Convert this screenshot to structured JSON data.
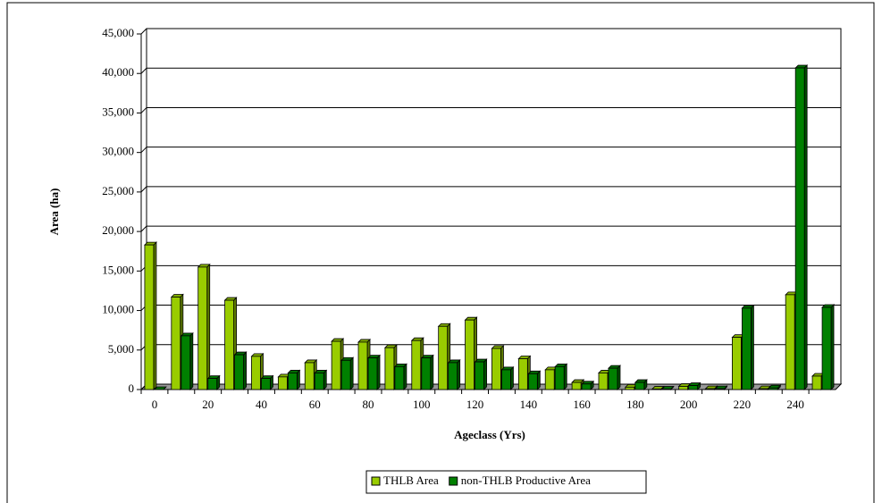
{
  "chart_data": {
    "type": "bar",
    "x_label": "Ageclass (Yrs)",
    "y_label": "Area (ha)",
    "categories": [
      "0",
      null,
      "20",
      null,
      "40",
      null,
      "60",
      null,
      "80",
      null,
      "100",
      null,
      "120",
      null,
      "140",
      null,
      "160",
      null,
      "180",
      null,
      "200",
      null,
      "220",
      null,
      "240",
      null
    ],
    "series": [
      {
        "name": "THLB Area",
        "color": "#99cc00",
        "values": [
          18300,
          11700,
          15500,
          11300,
          4200,
          1600,
          3400,
          6100,
          6000,
          5300,
          6200,
          8000,
          8800,
          5200,
          3900,
          2500,
          900,
          2100,
          300,
          50,
          400,
          100,
          6600,
          100,
          12000,
          1700
        ]
      },
      {
        "name": "non-THLB Productive Area",
        "color": "#008000",
        "values": [
          0,
          6800,
          1400,
          4400,
          1400,
          2100,
          2100,
          3700,
          4000,
          2900,
          4000,
          3400,
          3500,
          2500,
          2000,
          2900,
          700,
          2700,
          900,
          50,
          500,
          100,
          10300,
          200,
          40700,
          10400
        ]
      }
    ],
    "ylim": [
      0,
      45000
    ],
    "yticks": [
      0,
      {
        "value": 5000,
        "label": "5,000"
      },
      {
        "value": 10000,
        "label": "10,000"
      },
      {
        "value": 15000,
        "label": "15,000"
      },
      {
        "value": 20000,
        "label": "20,000"
      },
      {
        "value": 25000,
        "label": "25,000"
      },
      {
        "value": 30000,
        "label": "30,000"
      },
      {
        "value": 35000,
        "label": "35,000"
      },
      {
        "value": 40000,
        "label": "40,000"
      },
      {
        "value": 45000,
        "label": "45,000"
      }
    ],
    "grid": true,
    "legend": "bottom"
  }
}
